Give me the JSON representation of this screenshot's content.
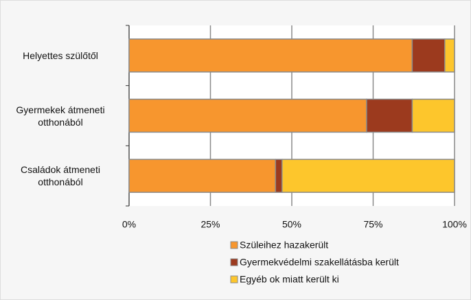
{
  "chart_data": {
    "type": "stacked_barh",
    "categories": [
      "Helyettes szülőtől",
      "Gyermekek átmeneti otthonából",
      "Családok átmeneti otthonából"
    ],
    "series": [
      {
        "name": "Szüleihez hazakerült",
        "color": "#f7962e",
        "values": [
          87,
          73,
          45
        ]
      },
      {
        "name": "Gyermekvédelmi szakellátásba került",
        "color": "#9c3a1e",
        "values": [
          10,
          14,
          2
        ]
      },
      {
        "name": "Egyéb ok miatt került ki",
        "color": "#fdc62c",
        "values": [
          3,
          13,
          53
        ]
      }
    ],
    "xlim": [
      0,
      100
    ],
    "xticks": [
      {
        "value": 0,
        "label": "0%"
      },
      {
        "value": 25,
        "label": "25%"
      },
      {
        "value": 50,
        "label": "50%"
      },
      {
        "value": 75,
        "label": "75%"
      },
      {
        "value": 100,
        "label": "100%"
      }
    ],
    "grid": true
  }
}
